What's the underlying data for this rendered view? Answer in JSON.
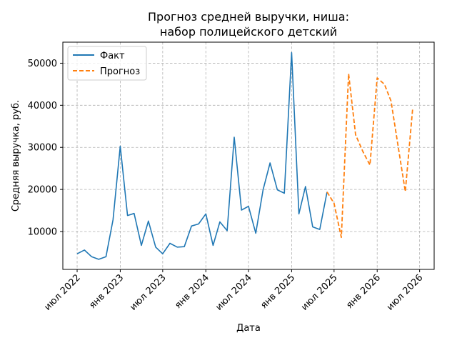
{
  "chart_data": {
    "type": "line",
    "title": "Прогноз средней выручки, ниша:\nнабор полицейского детский",
    "title_lines": [
      "Прогноз средней выручки, ниша:",
      "набор полицейского детский"
    ],
    "xlabel": "Дата",
    "ylabel": "Средняя выручка, руб.",
    "ylim": [
      1000,
      55000
    ],
    "xlim": [
      "2022-05-01",
      "2026-09-01"
    ],
    "yticks": [
      10000,
      20000,
      30000,
      40000,
      50000
    ],
    "xticks": [
      {
        "date": "2022-07-01",
        "label": "июл 2022"
      },
      {
        "date": "2023-01-01",
        "label": "янв 2023"
      },
      {
        "date": "2023-07-01",
        "label": "июл 2023"
      },
      {
        "date": "2024-01-01",
        "label": "янв 2024"
      },
      {
        "date": "2024-07-01",
        "label": "июл 2024"
      },
      {
        "date": "2025-01-01",
        "label": "янв 2025"
      },
      {
        "date": "2025-07-01",
        "label": "июл 2025"
      },
      {
        "date": "2026-01-01",
        "label": "янв 2026"
      },
      {
        "date": "2026-07-01",
        "label": "июл 2026"
      }
    ],
    "grid": true,
    "legend_position": "top-left",
    "series": [
      {
        "name": "Факт",
        "color": "#1f77b4",
        "style": "solid",
        "x": [
          "2022-07-01",
          "2022-08-01",
          "2022-09-01",
          "2022-10-01",
          "2022-11-01",
          "2022-12-01",
          "2023-01-01",
          "2023-02-01",
          "2023-03-01",
          "2023-04-01",
          "2023-05-01",
          "2023-06-01",
          "2023-07-01",
          "2023-08-01",
          "2023-09-01",
          "2023-10-01",
          "2023-11-01",
          "2023-12-01",
          "2024-01-01",
          "2024-02-01",
          "2024-03-01",
          "2024-04-01",
          "2024-05-01",
          "2024-06-01",
          "2024-07-01",
          "2024-08-01",
          "2024-09-01",
          "2024-10-01",
          "2024-11-01",
          "2024-12-01",
          "2025-01-01",
          "2025-02-01",
          "2025-03-01",
          "2025-04-01",
          "2025-05-01",
          "2025-06-01"
        ],
        "values": [
          4700,
          5600,
          4000,
          3400,
          4000,
          12800,
          30300,
          13800,
          14300,
          6700,
          12500,
          6300,
          4700,
          7200,
          6300,
          6400,
          11300,
          11800,
          14200,
          6700,
          12300,
          10200,
          32400,
          15100,
          16000,
          9600,
          19900,
          26300,
          19900,
          19100,
          52500,
          14200,
          20700,
          11100,
          10500,
          19400
        ]
      },
      {
        "name": "Прогноз",
        "color": "#ff7f0e",
        "style": "dashed",
        "x": [
          "2025-06-01",
          "2025-07-01",
          "2025-08-01",
          "2025-09-01",
          "2025-10-01",
          "2025-11-01",
          "2025-12-01",
          "2026-01-01",
          "2026-02-01",
          "2026-03-01",
          "2026-04-01",
          "2026-05-01",
          "2026-06-01"
        ],
        "values": [
          19400,
          16700,
          8600,
          47500,
          33000,
          29000,
          25800,
          46500,
          45000,
          41000,
          30000,
          19500,
          39000
        ]
      }
    ]
  }
}
